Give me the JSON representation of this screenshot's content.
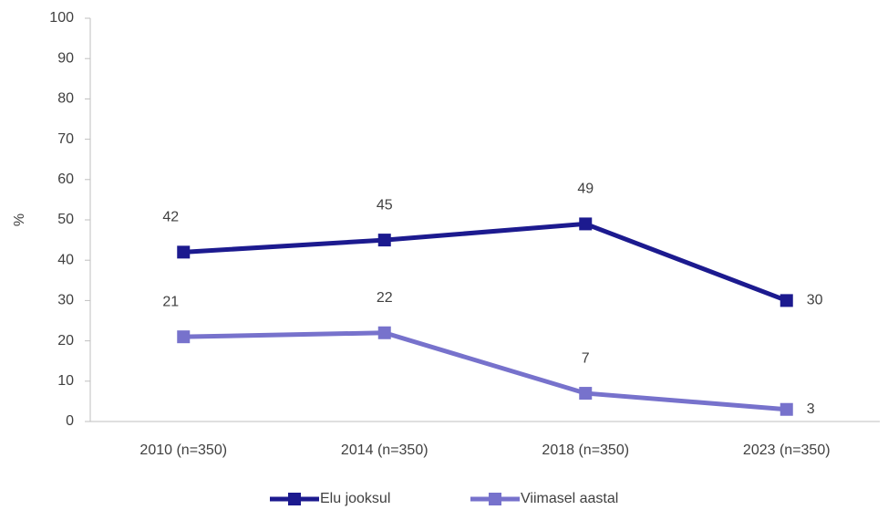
{
  "chart_data": {
    "type": "line",
    "ylabel": "%",
    "categories": [
      "2010 (n=350)",
      "2014 (n=350)",
      "2018 (n=350)",
      "2023 (n=350)"
    ],
    "series": [
      {
        "name": "Elu jooksul",
        "color": "#1c1a8f",
        "values": [
          42,
          45,
          49,
          30
        ]
      },
      {
        "name": "Viimasel aastal",
        "color": "#7772cc",
        "values": [
          21,
          22,
          7,
          3
        ]
      }
    ],
    "ylim": [
      0,
      100
    ],
    "yticks": [
      0,
      10,
      20,
      30,
      40,
      50,
      60,
      70,
      80,
      90,
      100
    ],
    "grid": false,
    "legend": "bottom"
  }
}
